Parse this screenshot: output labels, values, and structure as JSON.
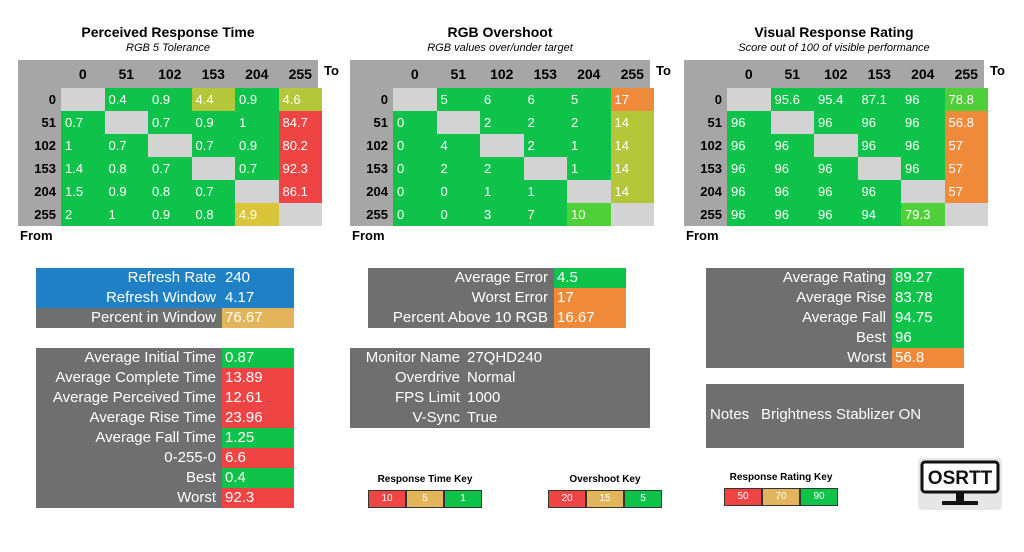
{
  "colors": {
    "green": "#0ec24a",
    "lgreen": "#4fcf3a",
    "ygreen": "#b4c73a",
    "yellow": "#d9c43a",
    "orange": "#ef8a3a",
    "red": "#ef4444",
    "gray": "#d3d3d3",
    "blue": "#1f80c6",
    "tan": "#e2b55a",
    "panel": "#6f6f6f"
  },
  "tables": [
    {
      "title": "Perceived Response Time",
      "subtitle": "RGB 5 Tolerance",
      "headers": [
        "0",
        "51",
        "102",
        "153",
        "204",
        "255"
      ],
      "to_label": "To",
      "from_label": "From",
      "rows": [
        {
          "label": "0",
          "cells": [
            {
              "v": "",
              "c": "gray"
            },
            {
              "v": "0.4",
              "c": "green"
            },
            {
              "v": "0.9",
              "c": "green"
            },
            {
              "v": "4.4",
              "c": "ygreen"
            },
            {
              "v": "0.9",
              "c": "green"
            },
            {
              "v": "4.6",
              "c": "ygreen"
            }
          ]
        },
        {
          "label": "51",
          "cells": [
            {
              "v": "0.7",
              "c": "green"
            },
            {
              "v": "",
              "c": "gray"
            },
            {
              "v": "0.7",
              "c": "green"
            },
            {
              "v": "0.9",
              "c": "green"
            },
            {
              "v": "1",
              "c": "green"
            },
            {
              "v": "84.7",
              "c": "red"
            }
          ]
        },
        {
          "label": "102",
          "cells": [
            {
              "v": "1",
              "c": "green"
            },
            {
              "v": "0.7",
              "c": "green"
            },
            {
              "v": "",
              "c": "gray"
            },
            {
              "v": "0.7",
              "c": "green"
            },
            {
              "v": "0.9",
              "c": "green"
            },
            {
              "v": "80.2",
              "c": "red"
            }
          ]
        },
        {
          "label": "153",
          "cells": [
            {
              "v": "1.4",
              "c": "green"
            },
            {
              "v": "0.8",
              "c": "green"
            },
            {
              "v": "0.7",
              "c": "green"
            },
            {
              "v": "",
              "c": "gray"
            },
            {
              "v": "0.7",
              "c": "green"
            },
            {
              "v": "92.3",
              "c": "red"
            }
          ]
        },
        {
          "label": "204",
          "cells": [
            {
              "v": "1.5",
              "c": "green"
            },
            {
              "v": "0.9",
              "c": "green"
            },
            {
              "v": "0.8",
              "c": "green"
            },
            {
              "v": "0.7",
              "c": "green"
            },
            {
              "v": "",
              "c": "gray"
            },
            {
              "v": "86.1",
              "c": "red"
            }
          ]
        },
        {
          "label": "255",
          "cells": [
            {
              "v": "2",
              "c": "green"
            },
            {
              "v": "1",
              "c": "green"
            },
            {
              "v": "0.9",
              "c": "green"
            },
            {
              "v": "0.8",
              "c": "green"
            },
            {
              "v": "4.9",
              "c": "yellow"
            },
            {
              "v": "",
              "c": "gray"
            }
          ]
        }
      ]
    },
    {
      "title": "RGB Overshoot",
      "subtitle": "RGB values over/under target",
      "headers": [
        "0",
        "51",
        "102",
        "153",
        "204",
        "255"
      ],
      "to_label": "To",
      "from_label": "From",
      "rows": [
        {
          "label": "0",
          "cells": [
            {
              "v": "",
              "c": "gray"
            },
            {
              "v": "5",
              "c": "green"
            },
            {
              "v": "6",
              "c": "green"
            },
            {
              "v": "6",
              "c": "green"
            },
            {
              "v": "5",
              "c": "green"
            },
            {
              "v": "17",
              "c": "orange"
            }
          ]
        },
        {
          "label": "51",
          "cells": [
            {
              "v": "0",
              "c": "green"
            },
            {
              "v": "",
              "c": "gray"
            },
            {
              "v": "2",
              "c": "green"
            },
            {
              "v": "2",
              "c": "green"
            },
            {
              "v": "2",
              "c": "green"
            },
            {
              "v": "14",
              "c": "ygreen"
            }
          ]
        },
        {
          "label": "102",
          "cells": [
            {
              "v": "0",
              "c": "green"
            },
            {
              "v": "4",
              "c": "green"
            },
            {
              "v": "",
              "c": "gray"
            },
            {
              "v": "2",
              "c": "green"
            },
            {
              "v": "1",
              "c": "green"
            },
            {
              "v": "14",
              "c": "ygreen"
            }
          ]
        },
        {
          "label": "153",
          "cells": [
            {
              "v": "0",
              "c": "green"
            },
            {
              "v": "2",
              "c": "green"
            },
            {
              "v": "2",
              "c": "green"
            },
            {
              "v": "",
              "c": "gray"
            },
            {
              "v": "1",
              "c": "green"
            },
            {
              "v": "14",
              "c": "ygreen"
            }
          ]
        },
        {
          "label": "204",
          "cells": [
            {
              "v": "0",
              "c": "green"
            },
            {
              "v": "0",
              "c": "green"
            },
            {
              "v": "1",
              "c": "green"
            },
            {
              "v": "1",
              "c": "green"
            },
            {
              "v": "",
              "c": "gray"
            },
            {
              "v": "14",
              "c": "ygreen"
            }
          ]
        },
        {
          "label": "255",
          "cells": [
            {
              "v": "0",
              "c": "green"
            },
            {
              "v": "0",
              "c": "green"
            },
            {
              "v": "3",
              "c": "green"
            },
            {
              "v": "7",
              "c": "green"
            },
            {
              "v": "10",
              "c": "lgreen"
            },
            {
              "v": "",
              "c": "gray"
            }
          ]
        }
      ]
    },
    {
      "title": "Visual Response Rating",
      "subtitle": "Score out of 100 of visible performance",
      "headers": [
        "0",
        "51",
        "102",
        "153",
        "204",
        "255"
      ],
      "to_label": "To",
      "from_label": "From",
      "rows": [
        {
          "label": "0",
          "cells": [
            {
              "v": "",
              "c": "gray"
            },
            {
              "v": "95.6",
              "c": "green"
            },
            {
              "v": "95.4",
              "c": "green"
            },
            {
              "v": "87.1",
              "c": "green"
            },
            {
              "v": "96",
              "c": "green"
            },
            {
              "v": "78.8",
              "c": "lgreen"
            }
          ]
        },
        {
          "label": "51",
          "cells": [
            {
              "v": "96",
              "c": "green"
            },
            {
              "v": "",
              "c": "gray"
            },
            {
              "v": "96",
              "c": "green"
            },
            {
              "v": "96",
              "c": "green"
            },
            {
              "v": "96",
              "c": "green"
            },
            {
              "v": "56.8",
              "c": "orange"
            }
          ]
        },
        {
          "label": "102",
          "cells": [
            {
              "v": "96",
              "c": "green"
            },
            {
              "v": "96",
              "c": "green"
            },
            {
              "v": "",
              "c": "gray"
            },
            {
              "v": "96",
              "c": "green"
            },
            {
              "v": "96",
              "c": "green"
            },
            {
              "v": "57",
              "c": "orange"
            }
          ]
        },
        {
          "label": "153",
          "cells": [
            {
              "v": "96",
              "c": "green"
            },
            {
              "v": "96",
              "c": "green"
            },
            {
              "v": "96",
              "c": "green"
            },
            {
              "v": "",
              "c": "gray"
            },
            {
              "v": "96",
              "c": "green"
            },
            {
              "v": "57",
              "c": "orange"
            }
          ]
        },
        {
          "label": "204",
          "cells": [
            {
              "v": "96",
              "c": "green"
            },
            {
              "v": "96",
              "c": "green"
            },
            {
              "v": "96",
              "c": "green"
            },
            {
              "v": "96",
              "c": "green"
            },
            {
              "v": "",
              "c": "gray"
            },
            {
              "v": "57",
              "c": "orange"
            }
          ]
        },
        {
          "label": "255",
          "cells": [
            {
              "v": "96",
              "c": "green"
            },
            {
              "v": "96",
              "c": "green"
            },
            {
              "v": "96",
              "c": "green"
            },
            {
              "v": "94",
              "c": "green"
            },
            {
              "v": "79.3",
              "c": "lgreen"
            },
            {
              "v": "",
              "c": "gray"
            }
          ]
        }
      ]
    }
  ],
  "refresh": [
    {
      "label": "Refresh Rate",
      "value": "240",
      "lbg": "blue",
      "vbg": "blue"
    },
    {
      "label": "Refresh Window",
      "value": "4.17",
      "lbg": "blue",
      "vbg": "blue"
    },
    {
      "label": "Percent in Window",
      "value": "76.67",
      "lbg": "panel",
      "vbg": "tan"
    }
  ],
  "times": [
    {
      "label": "Average Initial Time",
      "value": "0.87",
      "vbg": "green"
    },
    {
      "label": "Average Complete Time",
      "value": "13.89",
      "vbg": "red"
    },
    {
      "label": "Average Perceived Time",
      "value": "12.61",
      "vbg": "red"
    },
    {
      "label": "Average Rise Time",
      "value": "23.96",
      "vbg": "red"
    },
    {
      "label": "Average Fall Time",
      "value": "1.25",
      "vbg": "green"
    },
    {
      "label": "0-255-0",
      "value": "6.6",
      "vbg": "red"
    },
    {
      "label": "Best",
      "value": "0.4",
      "vbg": "green"
    },
    {
      "label": "Worst",
      "value": "92.3",
      "vbg": "red"
    }
  ],
  "errors": [
    {
      "label": "Average Error",
      "value": "4.5",
      "vbg": "green"
    },
    {
      "label": "Worst Error",
      "value": "17",
      "vbg": "orange"
    },
    {
      "label": "Percent Above 10 RGB",
      "value": "16.67",
      "vbg": "orange"
    }
  ],
  "monitor": [
    {
      "label": "Monitor Name",
      "value": "27QHD240"
    },
    {
      "label": "Overdrive",
      "value": "Normal"
    },
    {
      "label": "FPS Limit",
      "value": "1000"
    },
    {
      "label": "V-Sync",
      "value": "True"
    }
  ],
  "ratings": [
    {
      "label": "Average Rating",
      "value": "89.27",
      "vbg": "green"
    },
    {
      "label": "Average Rise",
      "value": "83.78",
      "vbg": "green"
    },
    {
      "label": "Average Fall",
      "value": "94.75",
      "vbg": "green"
    },
    {
      "label": "Best",
      "value": "96",
      "vbg": "green"
    },
    {
      "label": "Worst",
      "value": "56.8",
      "vbg": "orange"
    }
  ],
  "notes": {
    "label": "Notes",
    "value": "Brightness Stablizer ON"
  },
  "keys": [
    {
      "title": "Response Time Key",
      "items": [
        {
          "v": "10",
          "c": "red"
        },
        {
          "v": "5",
          "c": "tan"
        },
        {
          "v": "1",
          "c": "green"
        }
      ]
    },
    {
      "title": "Overshoot Key",
      "items": [
        {
          "v": "20",
          "c": "red"
        },
        {
          "v": "15",
          "c": "tan"
        },
        {
          "v": "5",
          "c": "green"
        }
      ]
    },
    {
      "title": "Response Rating Key",
      "items": [
        {
          "v": "50",
          "c": "red"
        },
        {
          "v": "70",
          "c": "tan"
        },
        {
          "v": "90",
          "c": "green"
        }
      ]
    }
  ],
  "logo": {
    "text": "OSRTT",
    "icon": "monitor-icon"
  }
}
